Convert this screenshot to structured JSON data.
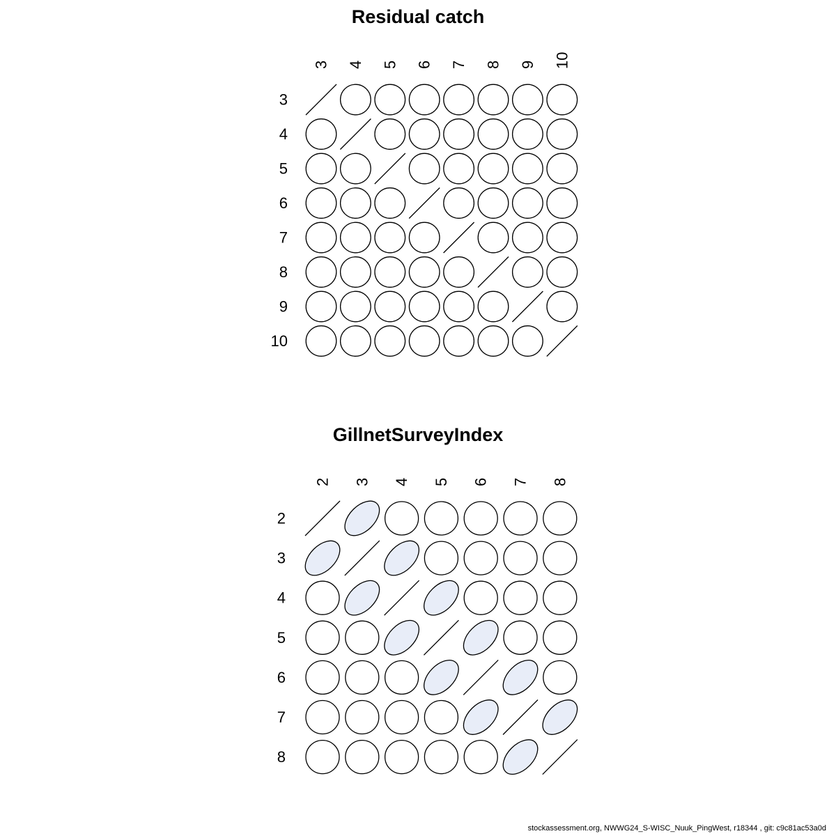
{
  "page": {
    "background": "#ffffff"
  },
  "colors": {
    "stroke": "#000000",
    "circle_fill": "#ffffff",
    "positive_ellipse_fill": "#e8edf8",
    "text": "#000000"
  },
  "footer": {
    "text": "stockassessment.org, NWWG24_S-WISC_Nuuk_PingWest, r18344 , git: c9c81ac53a0d"
  },
  "chart_data": [
    {
      "type": "heatmap",
      "subtype": "correlation-ellipse-matrix",
      "title": "Residual catch",
      "ages": [
        "3",
        "4",
        "5",
        "6",
        "7",
        "8",
        "9",
        "10"
      ],
      "legend_position": "none",
      "grid": false,
      "cell_encoding": {
        "slash": "diagonal (self-correlation, drawn as 45-degree line)",
        "circle": "near-zero correlation (plain circle)",
        "ellipse-pos": "positive correlation (light blue ellipse tilted +45 degrees)"
      },
      "cells": [
        [
          "slash",
          "circle",
          "circle",
          "circle",
          "circle",
          "circle",
          "circle",
          "circle"
        ],
        [
          "circle",
          "slash",
          "circle",
          "circle",
          "circle",
          "circle",
          "circle",
          "circle"
        ],
        [
          "circle",
          "circle",
          "slash",
          "circle",
          "circle",
          "circle",
          "circle",
          "circle"
        ],
        [
          "circle",
          "circle",
          "circle",
          "slash",
          "circle",
          "circle",
          "circle",
          "circle"
        ],
        [
          "circle",
          "circle",
          "circle",
          "circle",
          "slash",
          "circle",
          "circle",
          "circle"
        ],
        [
          "circle",
          "circle",
          "circle",
          "circle",
          "circle",
          "slash",
          "circle",
          "circle"
        ],
        [
          "circle",
          "circle",
          "circle",
          "circle",
          "circle",
          "circle",
          "slash",
          "circle"
        ],
        [
          "circle",
          "circle",
          "circle",
          "circle",
          "circle",
          "circle",
          "circle",
          "slash"
        ]
      ]
    },
    {
      "type": "heatmap",
      "subtype": "correlation-ellipse-matrix",
      "title": "GillnetSurveyIndex",
      "ages": [
        "2",
        "3",
        "4",
        "5",
        "6",
        "7",
        "8"
      ],
      "legend_position": "none",
      "grid": false,
      "cell_encoding": {
        "slash": "diagonal (self-correlation, drawn as 45-degree line)",
        "circle": "near-zero correlation (plain circle)",
        "ellipse-pos": "positive correlation (light blue ellipse tilted +45 degrees)"
      },
      "cells": [
        [
          "slash",
          "ellipse-pos",
          "circle",
          "circle",
          "circle",
          "circle",
          "circle"
        ],
        [
          "ellipse-pos",
          "slash",
          "ellipse-pos",
          "circle",
          "circle",
          "circle",
          "circle"
        ],
        [
          "circle",
          "ellipse-pos",
          "slash",
          "ellipse-pos",
          "circle",
          "circle",
          "circle"
        ],
        [
          "circle",
          "circle",
          "ellipse-pos",
          "slash",
          "ellipse-pos",
          "circle",
          "circle"
        ],
        [
          "circle",
          "circle",
          "circle",
          "ellipse-pos",
          "slash",
          "ellipse-pos",
          "circle"
        ],
        [
          "circle",
          "circle",
          "circle",
          "circle",
          "ellipse-pos",
          "slash",
          "ellipse-pos"
        ],
        [
          "circle",
          "circle",
          "circle",
          "circle",
          "circle",
          "ellipse-pos",
          "slash"
        ]
      ]
    }
  ]
}
